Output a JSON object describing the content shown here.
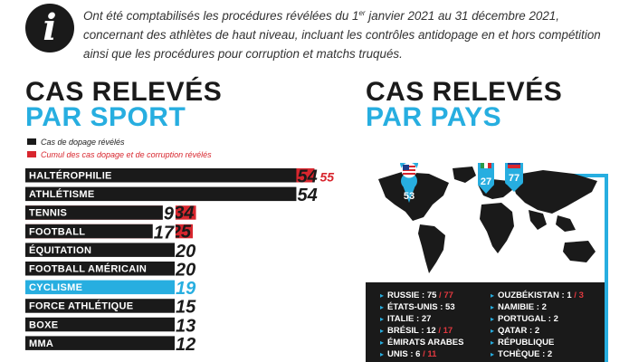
{
  "intro": {
    "line1_a": "Ont été comptabilisés les procédures révélées du 1",
    "line1_sup": "er",
    "line1_b": " janvier 2021 au 31 décembre 2021,",
    "line2": "concernant des athlètes de haut niveau, incluant les contrôles antidopage en et hors compétition",
    "line3": "ainsi que les procédures pour corruption et matchs truqués."
  },
  "sport_title": {
    "line1": "CAS RELEVÉS",
    "line2": "PAR SPORT"
  },
  "country_title": {
    "line1": "CAS RELEVÉS",
    "line2": "PAR PAYS"
  },
  "legend": {
    "doping": "Cas de dopage révélés",
    "cumul": "Cumul des cas dopage et de corruption révélés"
  },
  "colors": {
    "dark": "#1a1a1a",
    "red": "#d8262e",
    "blue": "#27aee0"
  },
  "chart_data": [
    {
      "type": "bar",
      "title": "CAS RELEVÉS PAR SPORT",
      "categories": [
        "HALTÉROPHILIE",
        "ATHLÉTISME",
        "TENNIS",
        "FOOTBALL",
        "ÉQUITATION",
        "FOOTBALL AMÉRICAIN",
        "CYCLISME",
        "FORCE ATHLÉTIQUE",
        "BOXE",
        "MMA"
      ],
      "series": [
        {
          "name": "Cas de dopage révélés",
          "values": [
            54,
            54,
            9,
            17,
            20,
            20,
            19,
            15,
            13,
            12
          ]
        },
        {
          "name": "Cumul des cas dopage et de corruption révélés",
          "values": [
            55,
            null,
            34,
            25,
            null,
            null,
            null,
            null,
            null,
            null
          ]
        }
      ],
      "highlight": "CYCLISME",
      "legend_position": "top-left"
    },
    {
      "type": "map",
      "title": "CAS RELEVÉS PAR PAYS",
      "markers": [
        {
          "country": "ÉTATS-UNIS",
          "value": 53,
          "flag": "us-flag-icon"
        },
        {
          "country": "ITALIE",
          "value": 27,
          "flag": "it-flag-icon"
        },
        {
          "country": "RUSSIE",
          "value": 77,
          "flag": "ru-flag-icon"
        }
      ]
    }
  ],
  "marker_labels": {
    "us": "53",
    "it": "27",
    "ru": "77"
  },
  "countries_col1": [
    {
      "name": "RUSSIE : 75",
      "extra": "77"
    },
    {
      "name": "ÉTATS-UNIS : 53",
      "extra": ""
    },
    {
      "name": "ITALIE : 27",
      "extra": ""
    },
    {
      "name": "BRÉSIL : 12",
      "extra": "17"
    },
    {
      "name": "ÉMIRATS ARABES",
      "extra": ""
    },
    {
      "name": "UNIS : 6",
      "extra": "11"
    }
  ],
  "countries_col2": [
    {
      "name": "OUZBÉKISTAN : 1",
      "extra": "3"
    },
    {
      "name": "NAMIBIE : 2",
      "extra": ""
    },
    {
      "name": "PORTUGAL : 2",
      "extra": ""
    },
    {
      "name": "QATAR : 2",
      "extra": ""
    },
    {
      "name": "RÉPUBLIQUE",
      "extra": ""
    },
    {
      "name": "TCHÈQUE : 2",
      "extra": ""
    }
  ]
}
